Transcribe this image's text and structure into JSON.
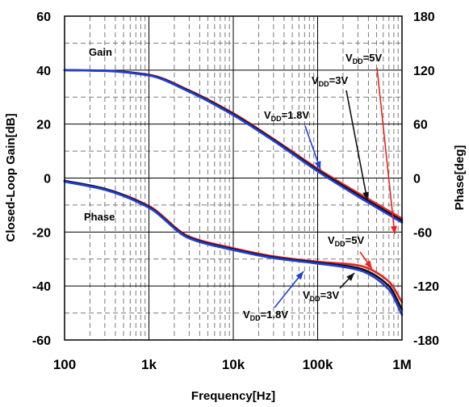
{
  "chart_data": {
    "type": "line",
    "xlabel": "Frequency[Hz]",
    "ylabel_left": "Closed-Loop Gain[dB]",
    "ylabel_right": "Phase[deg]",
    "x_scale": "log",
    "xlim": [
      100,
      1000000
    ],
    "ylim_left": [
      -60,
      60
    ],
    "ylim_right": [
      -180,
      180
    ],
    "x_ticks": [
      {
        "value": 100,
        "label": "100"
      },
      {
        "value": 1000,
        "label": "1k"
      },
      {
        "value": 10000,
        "label": "10k"
      },
      {
        "value": 100000,
        "label": "100k"
      },
      {
        "value": 1000000,
        "label": "1M"
      }
    ],
    "y_ticks_left": [
      "60",
      "40",
      "20",
      "0",
      "-20",
      "-40",
      "-60"
    ],
    "y_ticks_right": [
      "180",
      "120",
      "60",
      "0",
      "-60",
      "-120",
      "-180"
    ],
    "grid": true,
    "colors": {
      "vdd_5v": "#e8251f",
      "vdd_3v": "#111111",
      "vdd_1v8": "#1f3fd8"
    },
    "series": [
      {
        "group": "Gain",
        "axis": "left",
        "vdd": "5V",
        "x": [
          100,
          300,
          1000,
          3000,
          10000,
          30000,
          100000,
          300000,
          1000000
        ],
        "y": [
          40,
          39.8,
          38.3,
          32.5,
          24,
          14.5,
          3.5,
          -5.5,
          -15
        ]
      },
      {
        "group": "Gain",
        "axis": "left",
        "vdd": "3V",
        "x": [
          100,
          300,
          1000,
          3000,
          10000,
          30000,
          100000,
          300000,
          1000000
        ],
        "y": [
          40,
          39.8,
          38.2,
          32.3,
          23.7,
          14.2,
          3.0,
          -6.2,
          -15.8
        ]
      },
      {
        "group": "Gain",
        "axis": "left",
        "vdd": "1.8V",
        "x": [
          100,
          300,
          1000,
          3000,
          10000,
          30000,
          100000,
          300000,
          1000000
        ],
        "y": [
          40,
          39.7,
          38.0,
          32.0,
          23.3,
          13.8,
          2.5,
          -6.8,
          -16.5
        ]
      },
      {
        "group": "Phase",
        "axis": "right",
        "vdd": "5V",
        "x": [
          100,
          300,
          1000,
          3000,
          10000,
          30000,
          100000,
          300000,
          700000,
          1000000
        ],
        "y": [
          -3,
          -12,
          -31,
          -65,
          -78,
          -87,
          -93,
          -97,
          -115,
          -138
        ]
      },
      {
        "group": "Phase",
        "axis": "right",
        "vdd": "3V",
        "x": [
          100,
          300,
          1000,
          3000,
          10000,
          30000,
          100000,
          300000,
          700000,
          1000000
        ],
        "y": [
          -3,
          -12,
          -32,
          -66,
          -79,
          -88,
          -94,
          -100,
          -120,
          -146
        ]
      },
      {
        "group": "Phase",
        "axis": "right",
        "vdd": "1.8V",
        "x": [
          100,
          300,
          1000,
          3000,
          10000,
          30000,
          100000,
          300000,
          700000,
          1000000
        ],
        "y": [
          -4,
          -13,
          -33,
          -67,
          -80,
          -89,
          -95,
          -102,
          -124,
          -152
        ]
      }
    ],
    "annotations": {
      "gain_label": "Gain",
      "phase_label": "Phase",
      "labels": [
        {
          "id": "gain-5v",
          "vdd": "5V",
          "color_key": "vdd_5v",
          "sub": "DD",
          "suffix": "=5V"
        },
        {
          "id": "gain-3v",
          "vdd": "3V",
          "color_key": "vdd_3v",
          "sub": "DD",
          "suffix": "=3V"
        },
        {
          "id": "gain-1v8",
          "vdd": "1.8V",
          "color_key": "vdd_1v8",
          "sub": "DD",
          "suffix": "=1.8V"
        },
        {
          "id": "phase-5v",
          "vdd": "5V",
          "color_key": "vdd_5v",
          "sub": "DD",
          "suffix": "=5V"
        },
        {
          "id": "phase-3v",
          "vdd": "3V",
          "color_key": "vdd_3v",
          "sub": "DD",
          "suffix": "=3V"
        },
        {
          "id": "phase-1v8",
          "vdd": "1.8V",
          "color_key": "vdd_1v8",
          "sub": "DD",
          "suffix": "=1.8V"
        }
      ],
      "prefix": "V"
    }
  }
}
